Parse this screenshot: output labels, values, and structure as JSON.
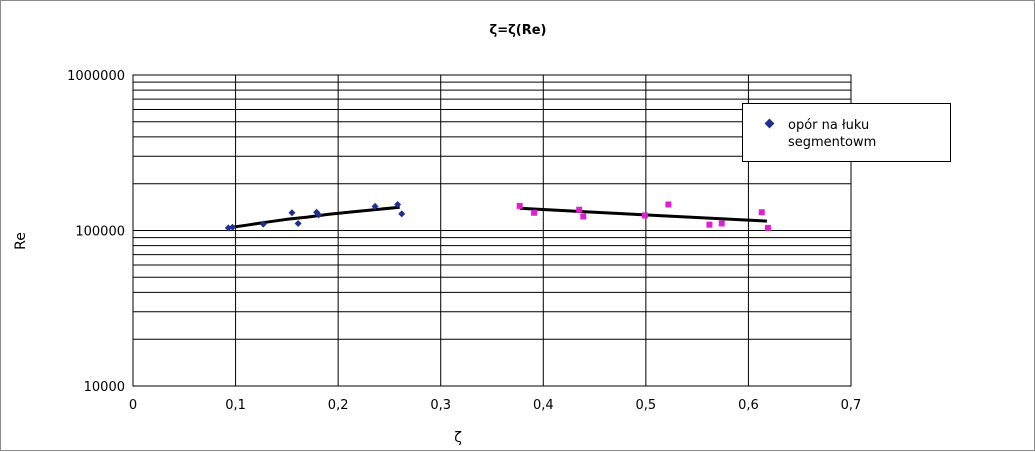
{
  "chart_data": {
    "type": "scatter",
    "title": "ζ=ζ(Re)",
    "xlabel": "ζ",
    "ylabel": "Re",
    "xlim": [
      0,
      0.7
    ],
    "ylim": [
      10000,
      1000000
    ],
    "ylog": true,
    "grid": true,
    "x_ticks": [
      "0",
      "0,1",
      "0,2",
      "0,3",
      "0,4",
      "0,5",
      "0,6",
      "0,7"
    ],
    "x_tick_values": [
      0,
      0.1,
      0.2,
      0.3,
      0.4,
      0.5,
      0.6,
      0.7
    ],
    "y_ticks": [
      "10000",
      "100000",
      "1000000"
    ],
    "y_tick_values": [
      10000,
      100000,
      1000000
    ],
    "legend_position": "right",
    "series": [
      {
        "name": "opór na łuku segmentowm",
        "marker": "diamond",
        "color": "#1f2f8f",
        "points": [
          [
            0.093,
            104000
          ],
          [
            0.097,
            105000
          ],
          [
            0.127,
            110000
          ],
          [
            0.155,
            130000
          ],
          [
            0.161,
            111000
          ],
          [
            0.179,
            131000
          ],
          [
            0.181,
            126000
          ],
          [
            0.236,
            143000
          ],
          [
            0.258,
            147000
          ],
          [
            0.262,
            128000
          ]
        ],
        "trend": [
          [
            0.092,
            104000
          ],
          [
            0.11,
            108000
          ],
          [
            0.13,
            113000
          ],
          [
            0.15,
            118000
          ],
          [
            0.17,
            122000
          ],
          [
            0.19,
            127000
          ],
          [
            0.21,
            131000
          ],
          [
            0.23,
            135000
          ],
          [
            0.26,
            141000
          ]
        ]
      },
      {
        "name": "",
        "marker": "square",
        "color": "#e020d0",
        "points": [
          [
            0.377,
            144000
          ],
          [
            0.391,
            130000
          ],
          [
            0.435,
            136000
          ],
          [
            0.439,
            123000
          ],
          [
            0.499,
            125000
          ],
          [
            0.522,
            147000
          ],
          [
            0.562,
            109000
          ],
          [
            0.574,
            111000
          ],
          [
            0.613,
            131000
          ],
          [
            0.619,
            104000
          ]
        ],
        "trend": [
          [
            0.377,
            139000
          ],
          [
            0.45,
            131000
          ],
          [
            0.53,
            123000
          ],
          [
            0.618,
            115000
          ]
        ]
      }
    ]
  },
  "legend": {
    "label": "opór na łuku segmentowm"
  }
}
